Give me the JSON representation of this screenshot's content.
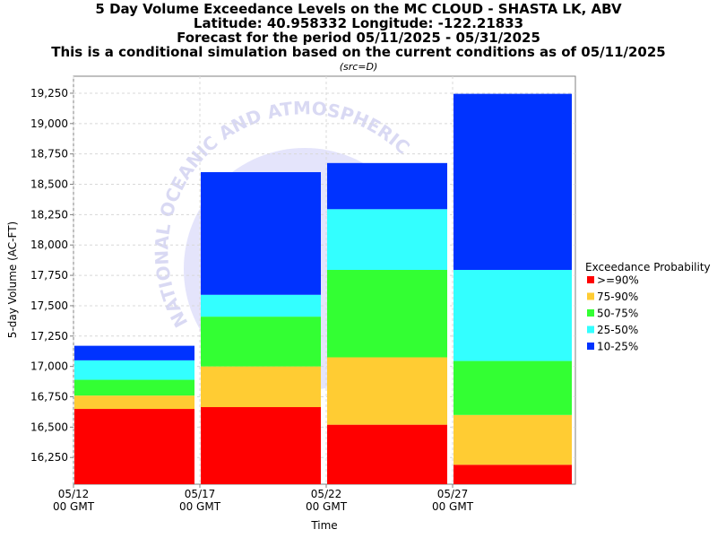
{
  "chart_data": {
    "type": "bar",
    "stacked": true,
    "title_lines": [
      "5 Day Volume Exceedance Levels on the MC CLOUD - SHASTA LK, ABV",
      "Latitude: 40.958332 Longitude: -122.21833",
      "Forecast for the period 05/11/2025 - 05/31/2025",
      "This is a conditional simulation based on the current conditions as of 05/11/2025"
    ],
    "subtitle": "(src=D)",
    "xlabel": "Time",
    "ylabel": "5-day Volume (AC-FT)",
    "ylim": [
      16030,
      19390
    ],
    "yticks": [
      "16,250",
      "16,500",
      "16,750",
      "17,000",
      "17,250",
      "17,500",
      "17,750",
      "18,000",
      "18,250",
      "18,500",
      "18,750",
      "19,000",
      "19,250"
    ],
    "ytick_values": [
      16250,
      16500,
      16750,
      17000,
      17250,
      17500,
      17750,
      18000,
      18250,
      18500,
      18750,
      19000,
      19250
    ],
    "x_ticks": [
      {
        "line1": "05/12",
        "line2": "00 GMT"
      },
      {
        "line1": "05/17",
        "line2": "00 GMT"
      },
      {
        "line1": "05/22",
        "line2": "00 GMT"
      },
      {
        "line1": "05/27",
        "line2": "00 GMT"
      }
    ],
    "grid": true,
    "legend_title": "Exceedance Probability",
    "legend_position": "right",
    "series": [
      {
        "name": ">=90%",
        "color": "#ff0000"
      },
      {
        "name": "75-90%",
        "color": "#ffcc33"
      },
      {
        "name": "50-75%",
        "color": "#33ff33"
      },
      {
        "name": "25-50%",
        "color": "#33ffff"
      },
      {
        "name": "10-25%",
        "color": "#0033ff"
      }
    ],
    "bars": [
      {
        "start": "05/12",
        "end": "05/17",
        "levels": [
          16650,
          16760,
          16890,
          17050,
          17170
        ]
      },
      {
        "start": "05/17",
        "end": "05/22",
        "levels": [
          16665,
          17000,
          17410,
          17590,
          18600
        ]
      },
      {
        "start": "05/22",
        "end": "05/27",
        "levels": [
          16520,
          17075,
          17795,
          18295,
          18675
        ]
      },
      {
        "start": "05/27",
        "end": "05/31",
        "levels": [
          16190,
          16600,
          17045,
          17795,
          19245
        ]
      }
    ],
    "watermark": "NATIONAL OCEANIC AND ATMOSPHERIC"
  }
}
